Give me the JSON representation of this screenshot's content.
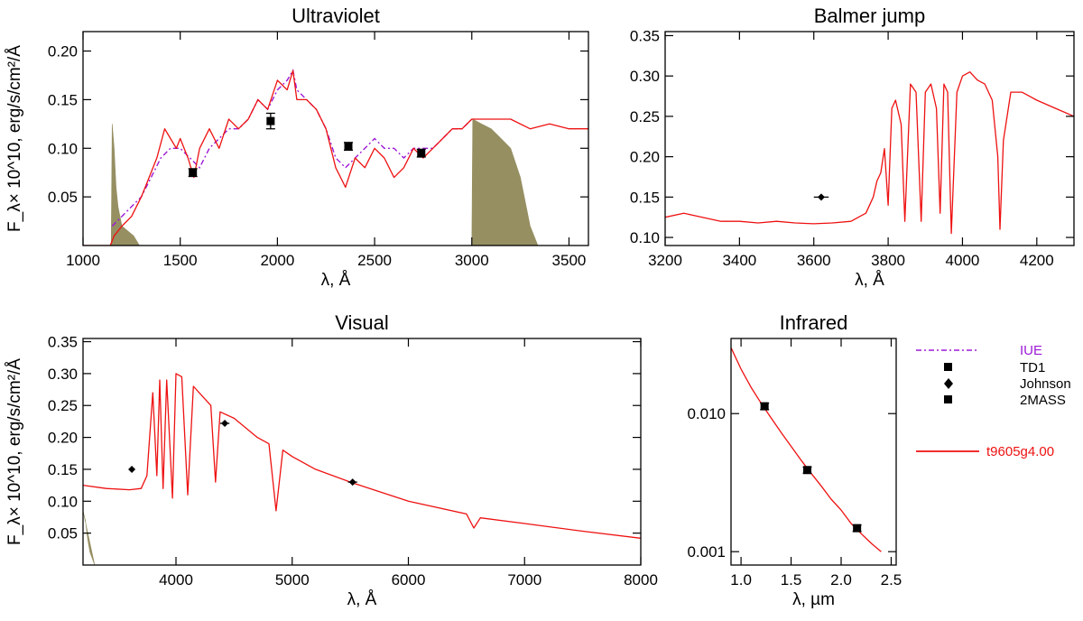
{
  "colors": {
    "iue": "#9d1ad6",
    "model": "#ee1111",
    "fill": "#968f62",
    "points": "#000000"
  },
  "chart_data": [
    {
      "id": "uv",
      "type": "line",
      "title": "Ultraviolet",
      "xlabel": "λ, Å",
      "ylabel": "F_λ× 10^10, erg/s/cm²/Å",
      "xlim": [
        1000,
        3600
      ],
      "ylim": [
        0.0,
        0.22
      ],
      "xticks": [
        1000,
        1500,
        2000,
        2500,
        3000,
        3500
      ],
      "xtick_labels": [
        "1000",
        "1500",
        "2000",
        "2500",
        "3000",
        "3500"
      ],
      "yticks": [
        0.05,
        0.1,
        0.15,
        0.2
      ],
      "ytick_labels": [
        "0.05",
        "0.10",
        "0.15",
        "0.20"
      ],
      "model": {
        "name": "t9605g4.00",
        "x": [
          1000,
          1140,
          1160,
          1200,
          1250,
          1300,
          1340,
          1380,
          1420,
          1450,
          1480,
          1500,
          1540,
          1570,
          1600,
          1650,
          1700,
          1750,
          1800,
          1850,
          1900,
          1950,
          2000,
          2050,
          2080,
          2100,
          2150,
          2200,
          2250,
          2300,
          2350,
          2400,
          2450,
          2500,
          2550,
          2600,
          2650,
          2700,
          2750,
          2800,
          2850,
          2900,
          2950,
          3000,
          3100,
          3200,
          3300,
          3400,
          3500,
          3600
        ],
        "y": [
          0.0,
          0.0,
          0.01,
          0.02,
          0.03,
          0.05,
          0.07,
          0.09,
          0.12,
          0.11,
          0.1,
          0.11,
          0.09,
          0.07,
          0.1,
          0.12,
          0.1,
          0.13,
          0.12,
          0.13,
          0.15,
          0.14,
          0.17,
          0.16,
          0.18,
          0.15,
          0.15,
          0.14,
          0.12,
          0.08,
          0.06,
          0.09,
          0.08,
          0.1,
          0.09,
          0.07,
          0.08,
          0.1,
          0.09,
          0.1,
          0.11,
          0.12,
          0.12,
          0.13,
          0.13,
          0.13,
          0.12,
          0.125,
          0.12,
          0.12
        ]
      },
      "iue": {
        "name": "IUE",
        "x": [
          1150,
          1200,
          1250,
          1300,
          1350,
          1400,
          1450,
          1500,
          1550,
          1600,
          1650,
          1700,
          1750,
          1800,
          1850,
          1900,
          1950,
          2000,
          2050,
          2080,
          2100,
          2150,
          2200,
          2250,
          2300,
          2350,
          2400,
          2450,
          2500,
          2550,
          2600,
          2650,
          2700,
          2750,
          2800,
          2850,
          2900,
          2950,
          3000
        ],
        "y": [
          0.02,
          0.03,
          0.04,
          0.05,
          0.07,
          0.09,
          0.1,
          0.1,
          0.09,
          0.08,
          0.1,
          0.11,
          0.12,
          0.12,
          0.13,
          0.15,
          0.14,
          0.16,
          0.17,
          0.18,
          0.16,
          0.15,
          0.14,
          0.12,
          0.09,
          0.08,
          0.09,
          0.1,
          0.11,
          0.1,
          0.1,
          0.09,
          0.1,
          0.1,
          0.1,
          0.11,
          0.12,
          0.12,
          0.13
        ]
      },
      "fills": [
        {
          "x": [
            1145,
            1150,
            1160,
            1170,
            1180,
            1200,
            1230,
            1260,
            1290
          ],
          "y": [
            0.0,
            0.125,
            0.1,
            0.06,
            0.04,
            0.02,
            0.015,
            0.01,
            0.0
          ]
        },
        {
          "x": [
            3000,
            3005,
            3050,
            3100,
            3150,
            3200,
            3250,
            3280,
            3300,
            3320,
            3340
          ],
          "y": [
            0.0,
            0.13,
            0.125,
            0.12,
            0.11,
            0.1,
            0.07,
            0.04,
            0.02,
            0.01,
            0.0
          ]
        }
      ],
      "points": [
        {
          "name": "TD1",
          "x": [
            1565,
            1965,
            2365,
            2740
          ],
          "y": [
            0.075,
            0.128,
            0.102,
            0.095
          ],
          "yerr": [
            0.004,
            0.008,
            0.004,
            0.004
          ],
          "marker": "square"
        }
      ]
    },
    {
      "id": "balmer",
      "type": "line",
      "title": "Balmer jump",
      "xlabel": "λ, Å",
      "ylabel": "",
      "xlim": [
        3200,
        4300
      ],
      "ylim": [
        0.09,
        0.355
      ],
      "xticks": [
        3200,
        3400,
        3600,
        3800,
        4000,
        4200
      ],
      "xtick_labels": [
        "3200",
        "3400",
        "3600",
        "3800",
        "4000",
        "4200"
      ],
      "yticks": [
        0.1,
        0.15,
        0.2,
        0.25,
        0.3,
        0.35
      ],
      "ytick_labels": [
        "0.10",
        "0.15",
        "0.20",
        "0.25",
        "0.30",
        "0.35"
      ],
      "model": {
        "name": "t9605g4.00",
        "x": [
          3200,
          3250,
          3300,
          3350,
          3400,
          3450,
          3500,
          3550,
          3600,
          3650,
          3700,
          3720,
          3740,
          3750,
          3760,
          3770,
          3780,
          3790,
          3800,
          3810,
          3820,
          3835,
          3845,
          3860,
          3875,
          3889,
          3900,
          3915,
          3930,
          3940,
          3950,
          3960,
          3970,
          3985,
          4000,
          4020,
          4040,
          4060,
          4080,
          4095,
          4101,
          4110,
          4130,
          4160,
          4200,
          4250,
          4300
        ],
        "y": [
          0.125,
          0.13,
          0.125,
          0.12,
          0.12,
          0.118,
          0.12,
          0.118,
          0.117,
          0.118,
          0.12,
          0.125,
          0.13,
          0.14,
          0.15,
          0.17,
          0.18,
          0.21,
          0.14,
          0.26,
          0.27,
          0.24,
          0.12,
          0.29,
          0.28,
          0.12,
          0.28,
          0.29,
          0.26,
          0.13,
          0.29,
          0.28,
          0.105,
          0.28,
          0.3,
          0.305,
          0.295,
          0.29,
          0.27,
          0.2,
          0.11,
          0.22,
          0.28,
          0.28,
          0.27,
          0.26,
          0.25
        ]
      },
      "points": [
        {
          "name": "Johnson",
          "x": [
            3620
          ],
          "y": [
            0.15
          ],
          "xerr": [
            20
          ],
          "marker": "diamond"
        }
      ]
    },
    {
      "id": "visual",
      "type": "line",
      "title": "Visual",
      "xlabel": "λ, Å",
      "ylabel": "F_λ× 10^10, erg/s/cm²/Å",
      "xlim": [
        3200,
        8000
      ],
      "ylim": [
        0.0,
        0.355
      ],
      "xticks": [
        4000,
        5000,
        6000,
        7000,
        8000
      ],
      "xtick_labels": [
        "4000",
        "5000",
        "6000",
        "7000",
        "8000"
      ],
      "yticks": [
        0.05,
        0.1,
        0.15,
        0.2,
        0.25,
        0.3,
        0.35
      ],
      "ytick_labels": [
        "0.05",
        "0.10",
        "0.15",
        "0.20",
        "0.25",
        "0.30",
        "0.35"
      ],
      "model": {
        "name": "t9605g4.00",
        "x": [
          3200,
          3400,
          3600,
          3700,
          3750,
          3800,
          3835,
          3860,
          3889,
          3920,
          3970,
          4000,
          4050,
          4101,
          4150,
          4250,
          4300,
          4340,
          4380,
          4500,
          4700,
          4800,
          4861,
          4920,
          5000,
          5200,
          5500,
          6000,
          6500,
          6563,
          6620,
          7000,
          7500,
          8000
        ],
        "y": [
          0.125,
          0.12,
          0.118,
          0.12,
          0.14,
          0.27,
          0.14,
          0.29,
          0.12,
          0.29,
          0.105,
          0.3,
          0.295,
          0.11,
          0.28,
          0.26,
          0.25,
          0.13,
          0.24,
          0.23,
          0.2,
          0.19,
          0.085,
          0.18,
          0.17,
          0.15,
          0.13,
          0.1,
          0.08,
          0.058,
          0.074,
          0.065,
          0.053,
          0.042
        ]
      },
      "fills": [
        {
          "x": [
            3200,
            3220,
            3240,
            3260,
            3280,
            3300
          ],
          "y": [
            0.085,
            0.07,
            0.04,
            0.02,
            0.01,
            0.0
          ]
        }
      ],
      "points": [
        {
          "name": "Johnson",
          "x": [
            3620,
            4420,
            5520
          ],
          "y": [
            0.15,
            0.222,
            0.13
          ],
          "xerr": [
            20,
            40,
            40
          ],
          "marker": "diamond"
        }
      ]
    },
    {
      "id": "infrared",
      "type": "line",
      "title": "Infrared",
      "xlabel": "λ, µm",
      "ylabel": "",
      "xscale": "linear",
      "yscale": "log",
      "xlim": [
        0.9,
        2.55
      ],
      "ylim": [
        0.0008,
        0.035
      ],
      "xticks": [
        1.0,
        1.5,
        2.0,
        2.5
      ],
      "xtick_labels": [
        "1.0",
        "1.5",
        "2.0",
        "2.5"
      ],
      "yticks": [
        0.001,
        0.01
      ],
      "ytick_labels": [
        "0.001",
        "0.010"
      ],
      "model": {
        "name": "t9605g4.00",
        "x": [
          0.9,
          1.0,
          1.1,
          1.2,
          1.3,
          1.4,
          1.5,
          1.6,
          1.7,
          1.8,
          1.9,
          2.0,
          2.1,
          2.2,
          2.3,
          2.4
        ],
        "y": [
          0.03,
          0.021,
          0.0155,
          0.0119,
          0.0093,
          0.0073,
          0.0058,
          0.0046,
          0.0037,
          0.003,
          0.0024,
          0.002,
          0.0016,
          0.00135,
          0.00115,
          0.001
        ]
      },
      "points": [
        {
          "name": "2MASS",
          "x": [
            1.235,
            1.662,
            2.159
          ],
          "y": [
            0.0113,
            0.0039,
            0.00148
          ],
          "yerr": [
            0.0006,
            0.0002,
            8e-05
          ],
          "marker": "square"
        }
      ]
    }
  ],
  "legend": {
    "items": [
      {
        "label": "IUE",
        "style": "dashdot",
        "color": "#9d1ad6"
      },
      {
        "label": "TD1",
        "style": "square",
        "color": "#000000"
      },
      {
        "label": "Johnson",
        "style": "diamond",
        "color": "#000000"
      },
      {
        "label": "2MASS",
        "style": "square",
        "color": "#000000"
      },
      {
        "label": "t9605g4.00",
        "style": "line",
        "color": "#ee1111"
      }
    ]
  }
}
